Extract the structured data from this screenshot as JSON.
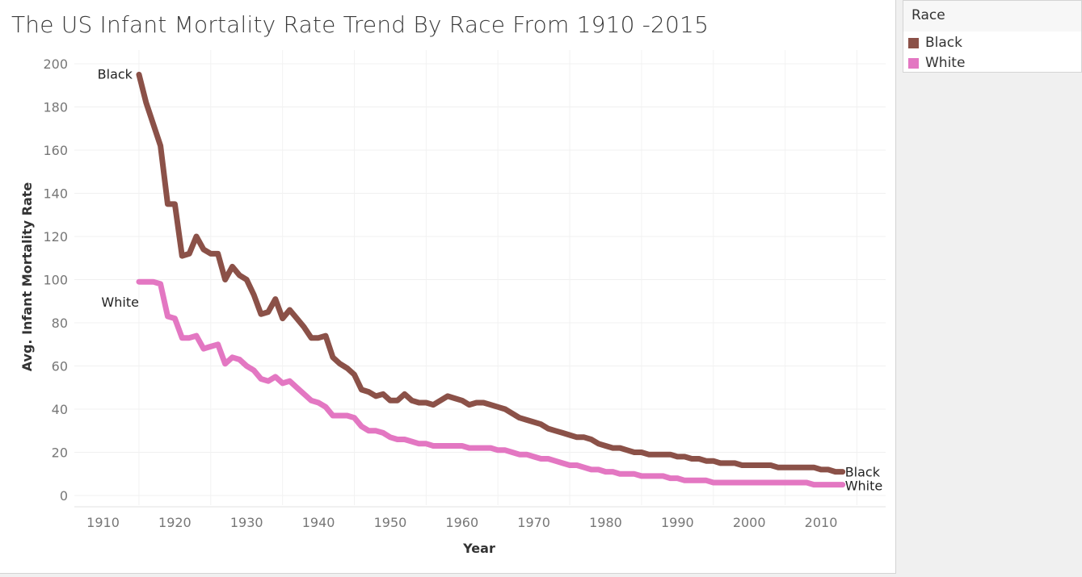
{
  "chart_data": {
    "type": "line",
    "title": "The US Infant Mortality Rate Trend By Race From 1910 -2015",
    "xlabel": "Year",
    "ylabel": "Avg. Infant Mortality Rate",
    "xlim": [
      1906,
      2019
    ],
    "ylim": [
      0,
      200
    ],
    "x_ticks": [
      1910,
      1920,
      1930,
      1940,
      1950,
      1960,
      1970,
      1980,
      1990,
      2000,
      2010
    ],
    "y_ticks": [
      0,
      20,
      40,
      60,
      80,
      100,
      120,
      140,
      160,
      180,
      200
    ],
    "grid": true,
    "legend": {
      "title": "Race",
      "placement": "right",
      "items": [
        {
          "label": "Black",
          "color": "#8b5148"
        },
        {
          "label": "White",
          "color": "#e377c2"
        }
      ]
    },
    "series": [
      {
        "name": "Black",
        "color": "#8b5148",
        "start_label": "Black",
        "end_label": "Black",
        "x": [
          1915,
          1916,
          1917,
          1918,
          1919,
          1920,
          1921,
          1922,
          1923,
          1924,
          1925,
          1926,
          1927,
          1928,
          1929,
          1930,
          1931,
          1932,
          1933,
          1934,
          1935,
          1936,
          1937,
          1938,
          1939,
          1940,
          1941,
          1942,
          1943,
          1944,
          1945,
          1946,
          1947,
          1948,
          1949,
          1950,
          1951,
          1952,
          1953,
          1954,
          1955,
          1956,
          1957,
          1958,
          1959,
          1960,
          1961,
          1962,
          1963,
          1964,
          1965,
          1966,
          1967,
          1968,
          1969,
          1970,
          1971,
          1972,
          1973,
          1974,
          1975,
          1976,
          1977,
          1978,
          1979,
          1980,
          1981,
          1982,
          1983,
          1984,
          1985,
          1986,
          1987,
          1988,
          1989,
          1990,
          1991,
          1992,
          1993,
          1994,
          1995,
          1996,
          1997,
          1998,
          1999,
          2000,
          2001,
          2002,
          2003,
          2004,
          2005,
          2006,
          2007,
          2008,
          2009,
          2010,
          2011,
          2012,
          2013
        ],
        "y": [
          195,
          182,
          172,
          162,
          135,
          135,
          111,
          112,
          120,
          114,
          112,
          112,
          100,
          106,
          102,
          100,
          93,
          84,
          85,
          91,
          82,
          86,
          82,
          78,
          73,
          73,
          74,
          64,
          61,
          59,
          56,
          49,
          48,
          46,
          47,
          44,
          44,
          47,
          44,
          43,
          43,
          42,
          44,
          46,
          45,
          44,
          42,
          43,
          43,
          42,
          41,
          40,
          38,
          36,
          35,
          34,
          33,
          31,
          30,
          29,
          28,
          27,
          27,
          26,
          24,
          23,
          22,
          22,
          21,
          20,
          20,
          19,
          19,
          19,
          19,
          18,
          18,
          17,
          17,
          16,
          16,
          15,
          15,
          15,
          14,
          14,
          14,
          14,
          14,
          13,
          13,
          13,
          13,
          13,
          13,
          12,
          12,
          11,
          11
        ]
      },
      {
        "name": "White",
        "color": "#e377c2",
        "start_label": "White",
        "end_label": "White",
        "x": [
          1915,
          1916,
          1917,
          1918,
          1919,
          1920,
          1921,
          1922,
          1923,
          1924,
          1925,
          1926,
          1927,
          1928,
          1929,
          1930,
          1931,
          1932,
          1933,
          1934,
          1935,
          1936,
          1937,
          1938,
          1939,
          1940,
          1941,
          1942,
          1943,
          1944,
          1945,
          1946,
          1947,
          1948,
          1949,
          1950,
          1951,
          1952,
          1953,
          1954,
          1955,
          1956,
          1957,
          1958,
          1959,
          1960,
          1961,
          1962,
          1963,
          1964,
          1965,
          1966,
          1967,
          1968,
          1969,
          1970,
          1971,
          1972,
          1973,
          1974,
          1975,
          1976,
          1977,
          1978,
          1979,
          1980,
          1981,
          1982,
          1983,
          1984,
          1985,
          1986,
          1987,
          1988,
          1989,
          1990,
          1991,
          1992,
          1993,
          1994,
          1995,
          1996,
          1997,
          1998,
          1999,
          2000,
          2001,
          2002,
          2003,
          2004,
          2005,
          2006,
          2007,
          2008,
          2009,
          2010,
          2011,
          2012,
          2013
        ],
        "y": [
          99,
          99,
          99,
          98,
          83,
          82,
          73,
          73,
          74,
          68,
          69,
          70,
          61,
          64,
          63,
          60,
          58,
          54,
          53,
          55,
          52,
          53,
          50,
          47,
          44,
          43,
          41,
          37,
          37,
          37,
          36,
          32,
          30,
          30,
          29,
          27,
          26,
          26,
          25,
          24,
          24,
          23,
          23,
          23,
          23,
          23,
          22,
          22,
          22,
          22,
          21,
          21,
          20,
          19,
          19,
          18,
          17,
          17,
          16,
          15,
          14,
          14,
          13,
          12,
          12,
          11,
          11,
          10,
          10,
          10,
          9,
          9,
          9,
          9,
          8,
          8,
          7,
          7,
          7,
          7,
          6,
          6,
          6,
          6,
          6,
          6,
          6,
          6,
          6,
          6,
          6,
          6,
          6,
          6,
          5,
          5,
          5,
          5,
          5
        ]
      }
    ]
  }
}
